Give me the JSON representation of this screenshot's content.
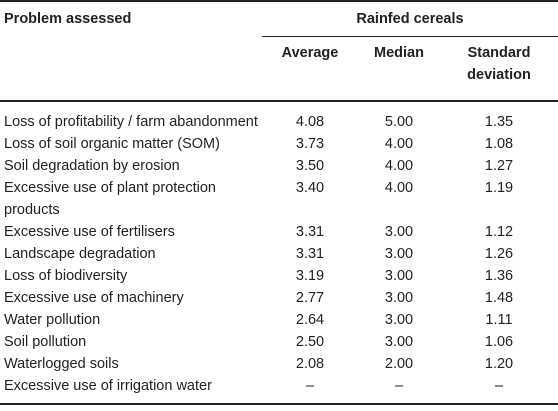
{
  "header": {
    "problem_assessed": "Problem assessed",
    "group": "Rainfed cereals",
    "average": "Average",
    "median": "Median",
    "sd_line1": "Standard",
    "sd_line2": "deviation"
  },
  "rows": [
    {
      "problem": "Loss of profitability / farm abandonment",
      "average": "4.08",
      "median": "5.00",
      "sd": "1.35"
    },
    {
      "problem": "Loss of soil organic matter (SOM)",
      "average": "3.73",
      "median": "4.00",
      "sd": "1.08"
    },
    {
      "problem": "Soil degradation by erosion",
      "average": "3.50",
      "median": "4.00",
      "sd": "1.27"
    },
    {
      "problem": "Excessive use of plant protection products",
      "average": "3.40",
      "median": "4.00",
      "sd": "1.19"
    },
    {
      "problem": "Excessive use of fertilisers",
      "average": "3.31",
      "median": "3.00",
      "sd": "1.12"
    },
    {
      "problem": "Landscape degradation",
      "average": "3.31",
      "median": "3.00",
      "sd": "1.26"
    },
    {
      "problem": "Loss of biodiversity",
      "average": "3.19",
      "median": "3.00",
      "sd": "1.36"
    },
    {
      "problem": "Excessive use of machinery",
      "average": "2.77",
      "median": "3.00",
      "sd": "1.48"
    },
    {
      "problem": "Water pollution",
      "average": "2.64",
      "median": "3.00",
      "sd": "1.11"
    },
    {
      "problem": "Soil pollution",
      "average": "2.50",
      "median": "3.00",
      "sd": "1.06"
    },
    {
      "problem": "Waterlogged soils",
      "average": "2.08",
      "median": "2.00",
      "sd": "1.20"
    },
    {
      "problem": "Excessive use of irrigation water",
      "average": "–",
      "median": "–",
      "sd": "–"
    }
  ]
}
